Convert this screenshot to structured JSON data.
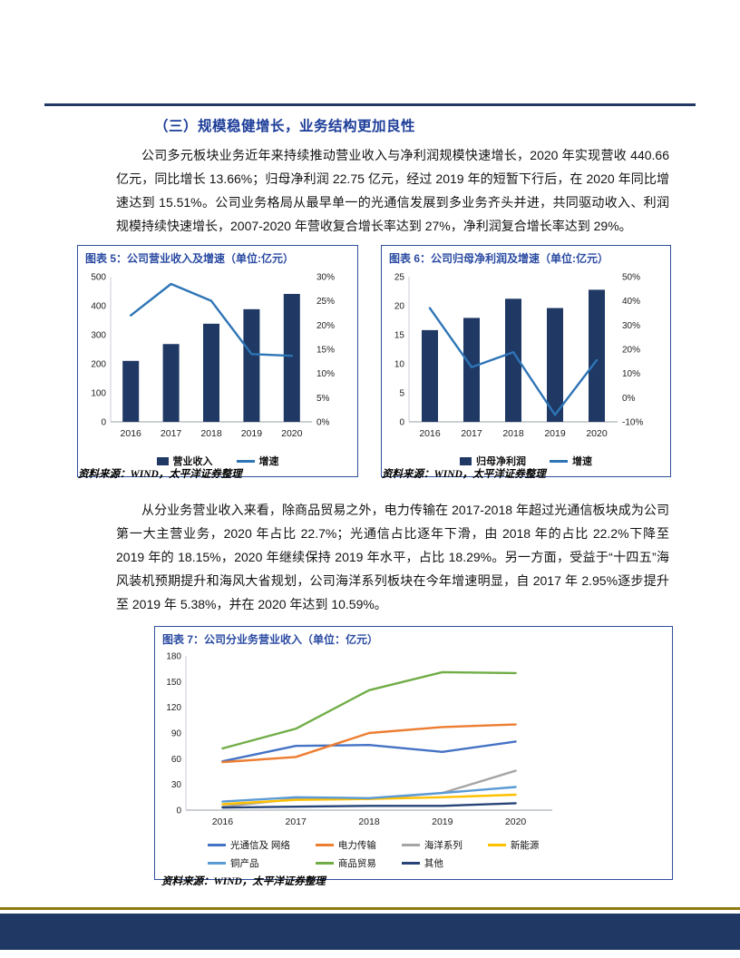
{
  "page": {
    "section_heading": "（三）规模稳健增长，业务结构更加良性",
    "paragraph1": "公司多元板块业务近年来持续推动营业收入与净利润规模快速增长，2020 年实现营收 440.66 亿元，同比增长 13.66%；归母净利润 22.75 亿元，经过 2019 年的短暂下行后，在 2020 年同比增速达到 15.51%。公司业务格局从最早单一的光通信发展到多业务齐头并进，共同驱动收入、利润规模持续快速增长，2007-2020 年营收复合增长率达到 27%，净利润复合增长率达到 29%。",
    "paragraph2": "从分业务营业收入来看，除商品贸易之外，电力传输在 2017-2018 年超过光通信板块成为公司第一大主营业务，2020 年占比 22.7%；光通信占比逐年下滑，由 2018 年的占比 22.2%下降至 2019 年的 18.15%，2020 年继续保持 2019 年水平，占比 18.29%。另一方面，受益于“十四五”海风装机预期提升和海风大省规划，公司海洋系列板块在今年增速明显，自 2017 年 2.95%逐步提升至 2019 年 5.38%，并在 2020 年达到 10.59%。"
  },
  "colors": {
    "accent_navy": "#1f3864",
    "title_blue": "#2a4aa2",
    "line_blue": "#2e75b6",
    "gold_rule": "#8e7a12"
  },
  "chart_data": [
    {
      "id": "chart5",
      "type": "bar",
      "title": "图表 5：公司营业收入及增速（单位:亿元）",
      "source": "资料来源：WIND，太平洋证券整理",
      "categories": [
        "2016",
        "2017",
        "2018",
        "2019",
        "2020"
      ],
      "series": [
        {
          "name": "营业收入",
          "type": "bar",
          "axis": "left",
          "color": "#1f3864",
          "values": [
            210,
            268,
            338,
            388,
            440.66
          ]
        },
        {
          "name": "增速",
          "type": "line",
          "axis": "right",
          "color": "#2e75b6",
          "values": [
            22,
            28.5,
            25,
            14,
            13.66
          ]
        }
      ],
      "left_axis": {
        "min": 0,
        "max": 500,
        "step": 100,
        "format": "number"
      },
      "right_axis": {
        "min": 0,
        "max": 30,
        "step": 5,
        "format": "percent"
      },
      "grid": false,
      "legend_position": "bottom"
    },
    {
      "id": "chart6",
      "type": "bar",
      "title": "图表 6：公司归母净利润及增速（单位:亿元）",
      "source": "资料来源：WIND，太平洋证券整理",
      "categories": [
        "2016",
        "2017",
        "2018",
        "2019",
        "2020"
      ],
      "series": [
        {
          "name": "归母净利润",
          "type": "bar",
          "axis": "left",
          "color": "#1f3864",
          "values": [
            15.8,
            17.9,
            21.2,
            19.6,
            22.75
          ]
        },
        {
          "name": "增速",
          "type": "line",
          "axis": "right",
          "color": "#2e75b6",
          "values": [
            37,
            12.6,
            18.8,
            -7.1,
            15.51
          ]
        }
      ],
      "left_axis": {
        "min": 0,
        "max": 25,
        "step": 5,
        "format": "number"
      },
      "right_axis": {
        "min": -10,
        "max": 50,
        "step": 10,
        "format": "percent"
      },
      "grid": false,
      "legend_position": "bottom"
    },
    {
      "id": "chart7",
      "type": "line",
      "title": "图表 7：公司分业务营业收入（单位：亿元）",
      "source": "资料来源：WIND，太平洋证券整理",
      "categories": [
        "2016",
        "2017",
        "2018",
        "2019",
        "2020"
      ],
      "series": [
        {
          "name": "光通信及 网络",
          "type": "line",
          "axis": "left",
          "color": "#4472c4",
          "values": [
            57,
            75,
            76,
            68,
            80
          ]
        },
        {
          "name": "电力传输",
          "type": "line",
          "axis": "left",
          "color": "#ed7d31",
          "values": [
            56,
            62,
            90,
            97,
            100
          ]
        },
        {
          "name": "海洋系列",
          "type": "line",
          "axis": "left",
          "color": "#a5a5a5",
          "values": [
            4,
            13,
            13,
            20,
            46
          ]
        },
        {
          "name": "新能源",
          "type": "line",
          "axis": "left",
          "color": "#ffc000",
          "values": [
            7,
            12,
            13,
            15,
            18
          ]
        },
        {
          "name": "铜产品",
          "type": "line",
          "axis": "left",
          "color": "#5b9bd5",
          "values": [
            10,
            15,
            14,
            20,
            27
          ]
        },
        {
          "name": "商品贸易",
          "type": "line",
          "axis": "left",
          "color": "#70ad47",
          "values": [
            72,
            95,
            140,
            161,
            160
          ]
        },
        {
          "name": "其他",
          "type": "line",
          "axis": "left",
          "color": "#264478",
          "values": [
            3,
            4,
            5,
            5,
            8
          ]
        }
      ],
      "left_axis": {
        "min": 0,
        "max": 180,
        "step": 30,
        "format": "number"
      },
      "grid": false,
      "legend_position": "bottom"
    }
  ]
}
